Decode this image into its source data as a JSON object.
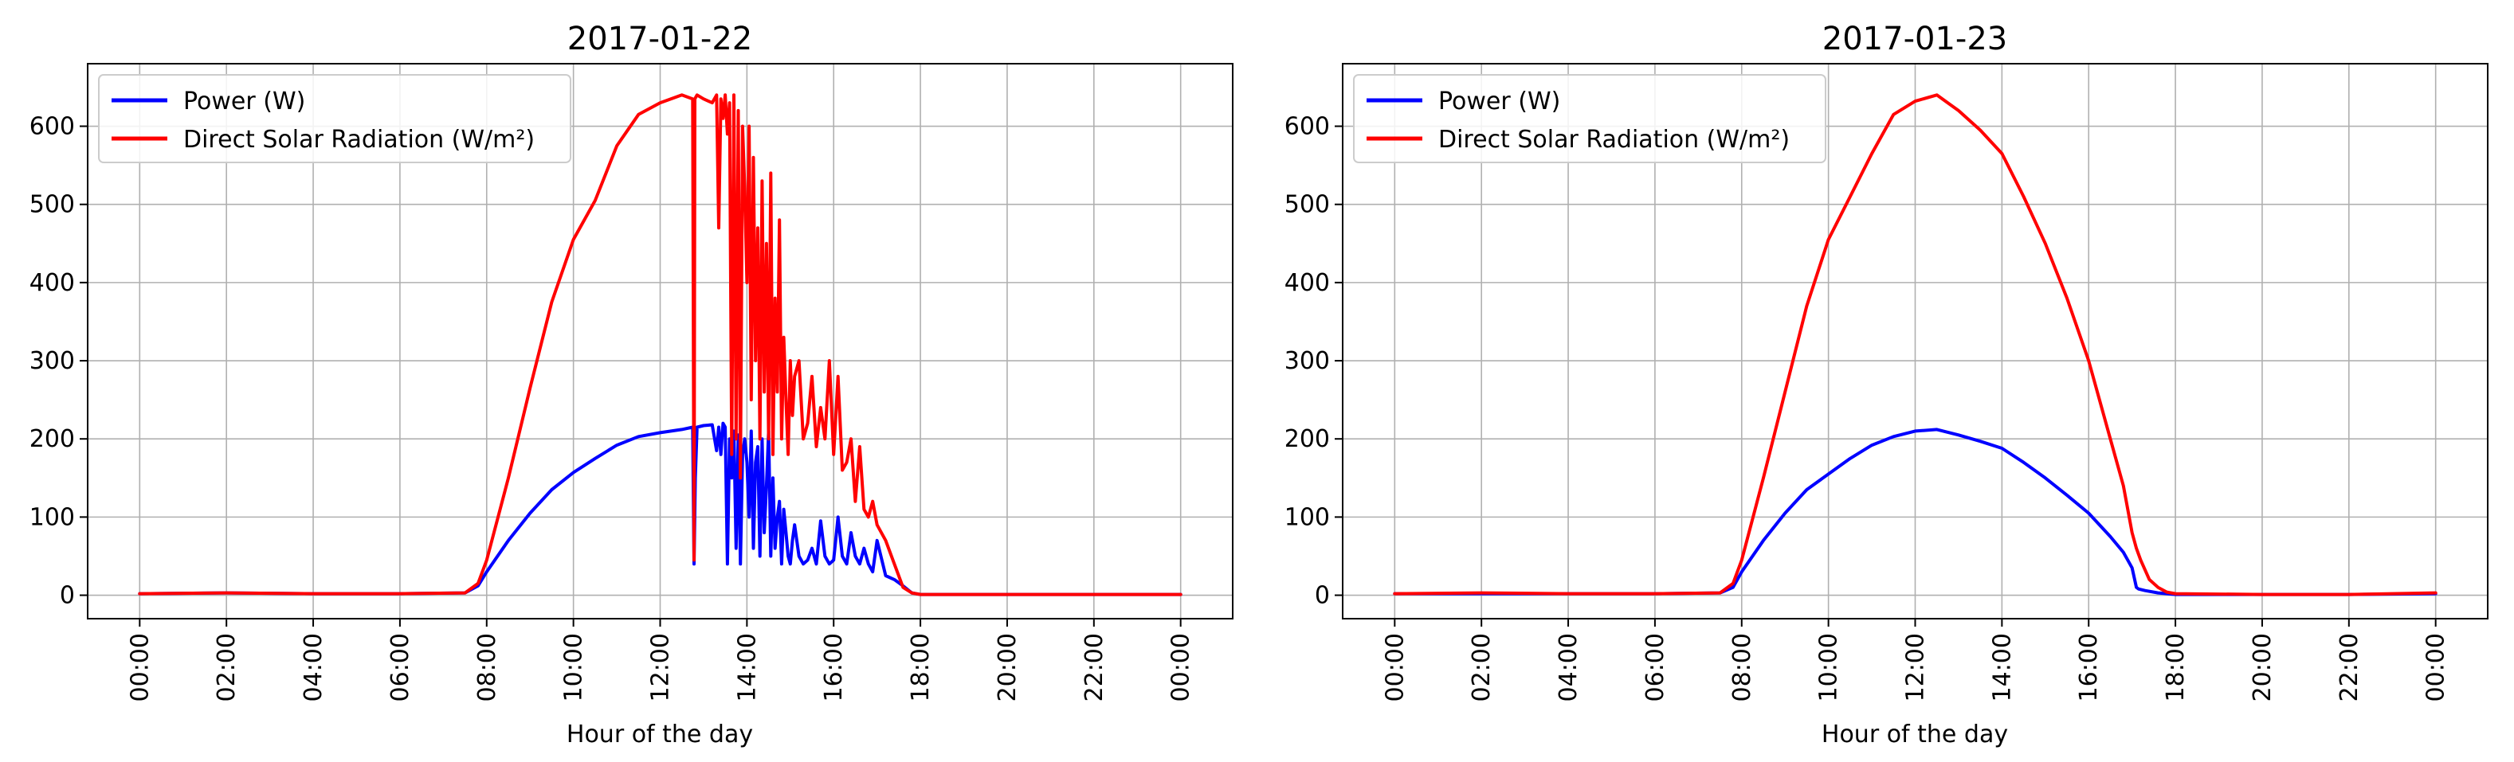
{
  "chart_data": [
    {
      "type": "line",
      "title": "2017-01-22",
      "xlabel": "Hour of the day",
      "ylabel": "",
      "xlim": [
        -1.2,
        25.2
      ],
      "ylim": [
        -30,
        680
      ],
      "grid": true,
      "legend": "top-left",
      "x_ticks": [
        0,
        2,
        4,
        6,
        8,
        10,
        12,
        14,
        16,
        18,
        20,
        22,
        24
      ],
      "x_tick_labels": [
        "00:00",
        "02:00",
        "04:00",
        "06:00",
        "08:00",
        "10:00",
        "12:00",
        "14:00",
        "16:00",
        "18:00",
        "20:00",
        "22:00",
        "00:00"
      ],
      "y_ticks": [
        0,
        100,
        200,
        300,
        400,
        500,
        600
      ],
      "y_tick_labels": [
        "0",
        "100",
        "200",
        "300",
        "400",
        "500",
        "600"
      ],
      "series": [
        {
          "name": "Power (W)",
          "color": "#0000ff",
          "x": [
            0,
            2,
            4,
            6,
            7.5,
            7.8,
            8,
            8.5,
            9,
            9.5,
            10,
            10.5,
            11,
            11.5,
            12,
            12.5,
            12.75,
            12.78,
            12.81,
            12.85,
            13,
            13.2,
            13.3,
            13.35,
            13.4,
            13.45,
            13.5,
            13.55,
            13.6,
            13.65,
            13.7,
            13.75,
            13.8,
            13.85,
            13.9,
            13.95,
            14.0,
            14.05,
            14.1,
            14.15,
            14.2,
            14.25,
            14.3,
            14.35,
            14.4,
            14.45,
            14.5,
            14.55,
            14.6,
            14.65,
            14.7,
            14.75,
            14.8,
            14.85,
            14.9,
            14.95,
            15.0,
            15.05,
            15.1,
            15.2,
            15.3,
            15.4,
            15.5,
            15.6,
            15.7,
            15.8,
            15.9,
            16.0,
            16.1,
            16.2,
            16.3,
            16.4,
            16.5,
            16.6,
            16.7,
            16.8,
            16.9,
            17.0,
            17.2,
            17.4,
            17.6,
            17.8,
            18.0,
            20,
            22,
            24
          ],
          "y": [
            2,
            3,
            2,
            2,
            3,
            12,
            30,
            70,
            105,
            135,
            157,
            175,
            192,
            203,
            208,
            212,
            215,
            40,
            150,
            215,
            217,
            218,
            185,
            215,
            180,
            220,
            215,
            40,
            200,
            150,
            210,
            60,
            205,
            40,
            180,
            200,
            170,
            100,
            210,
            60,
            170,
            190,
            50,
            200,
            80,
            140,
            210,
            50,
            150,
            60,
            100,
            120,
            40,
            110,
            80,
            50,
            40,
            70,
            90,
            50,
            40,
            45,
            60,
            40,
            95,
            50,
            40,
            45,
            100,
            50,
            40,
            80,
            50,
            40,
            60,
            40,
            30,
            70,
            25,
            20,
            12,
            3,
            1,
            1,
            1,
            1
          ]
        },
        {
          "name": "Direct Solar Radiation (W/m²)",
          "color": "#ff0000",
          "x": [
            0,
            2,
            4,
            6,
            7.5,
            7.8,
            8,
            8.5,
            9,
            9.5,
            10,
            10.5,
            11,
            11.5,
            12,
            12.5,
            12.75,
            12.78,
            12.8,
            12.85,
            13,
            13.2,
            13.3,
            13.35,
            13.4,
            13.45,
            13.5,
            13.55,
            13.6,
            13.65,
            13.7,
            13.75,
            13.8,
            13.85,
            13.9,
            13.95,
            14.0,
            14.05,
            14.1,
            14.15,
            14.2,
            14.25,
            14.3,
            14.35,
            14.4,
            14.45,
            14.5,
            14.55,
            14.6,
            14.65,
            14.7,
            14.75,
            14.8,
            14.85,
            14.9,
            14.95,
            15.0,
            15.05,
            15.1,
            15.2,
            15.3,
            15.4,
            15.5,
            15.6,
            15.7,
            15.8,
            15.9,
            16.0,
            16.1,
            16.2,
            16.3,
            16.4,
            16.5,
            16.6,
            16.7,
            16.8,
            16.9,
            17.0,
            17.2,
            17.4,
            17.6,
            17.8,
            18.0,
            20,
            22,
            24
          ],
          "y": [
            2,
            3,
            2,
            2,
            3,
            15,
            45,
            150,
            265,
            375,
            455,
            505,
            575,
            615,
            630,
            640,
            635,
            45,
            635,
            640,
            635,
            630,
            640,
            470,
            635,
            610,
            640,
            590,
            630,
            180,
            640,
            200,
            620,
            150,
            600,
            520,
            400,
            600,
            250,
            560,
            300,
            470,
            200,
            530,
            260,
            450,
            200,
            540,
            180,
            380,
            260,
            480,
            200,
            330,
            250,
            180,
            300,
            230,
            280,
            300,
            200,
            220,
            280,
            190,
            240,
            200,
            300,
            180,
            280,
            160,
            170,
            200,
            120,
            190,
            110,
            100,
            120,
            90,
            70,
            40,
            10,
            3,
            1,
            1,
            1,
            1
          ]
        }
      ]
    },
    {
      "type": "line",
      "title": "2017-01-23",
      "xlabel": "Hour of the day",
      "ylabel": "",
      "xlim": [
        -1.2,
        25.2
      ],
      "ylim": [
        -30,
        680
      ],
      "grid": true,
      "legend": "top-left",
      "x_ticks": [
        0,
        2,
        4,
        6,
        8,
        10,
        12,
        14,
        16,
        18,
        20,
        22,
        24
      ],
      "x_tick_labels": [
        "00:00",
        "02:00",
        "04:00",
        "06:00",
        "08:00",
        "10:00",
        "12:00",
        "14:00",
        "16:00",
        "18:00",
        "20:00",
        "22:00",
        "00:00"
      ],
      "y_ticks": [
        0,
        100,
        200,
        300,
        400,
        500,
        600
      ],
      "y_tick_labels": [
        "0",
        "100",
        "200",
        "300",
        "400",
        "500",
        "600"
      ],
      "series": [
        {
          "name": "Power (W)",
          "color": "#0000ff",
          "x": [
            0,
            2,
            4,
            6,
            7.5,
            7.8,
            8,
            8.5,
            9,
            9.5,
            10,
            10.5,
            11,
            11.5,
            12,
            12.5,
            13,
            13.5,
            14,
            14.5,
            15,
            15.5,
            16,
            16.5,
            16.8,
            17.0,
            17.1,
            17.15,
            17.3,
            17.6,
            18,
            20,
            22,
            24
          ],
          "y": [
            2,
            2,
            2,
            2,
            3,
            10,
            30,
            70,
            105,
            135,
            155,
            175,
            192,
            203,
            210,
            212,
            205,
            197,
            188,
            170,
            150,
            128,
            105,
            75,
            55,
            35,
            10,
            8,
            6,
            3,
            1,
            1,
            1,
            2
          ]
        },
        {
          "name": "Direct Solar Radiation (W/m²)",
          "color": "#ff0000",
          "x": [
            0,
            2,
            4,
            6,
            7.5,
            7.8,
            8,
            8.5,
            9,
            9.5,
            10,
            10.5,
            11,
            11.5,
            12,
            12.5,
            13,
            13.5,
            14,
            14.5,
            15,
            15.5,
            16,
            16.5,
            16.8,
            17.0,
            17.1,
            17.2,
            17.4,
            17.6,
            17.8,
            18,
            20,
            22,
            24
          ],
          "y": [
            2,
            3,
            2,
            2,
            3,
            15,
            45,
            150,
            260,
            370,
            455,
            510,
            565,
            615,
            632,
            640,
            620,
            595,
            565,
            510,
            450,
            380,
            300,
            200,
            140,
            80,
            60,
            45,
            20,
            10,
            4,
            2,
            1,
            1,
            3
          ]
        }
      ]
    }
  ]
}
